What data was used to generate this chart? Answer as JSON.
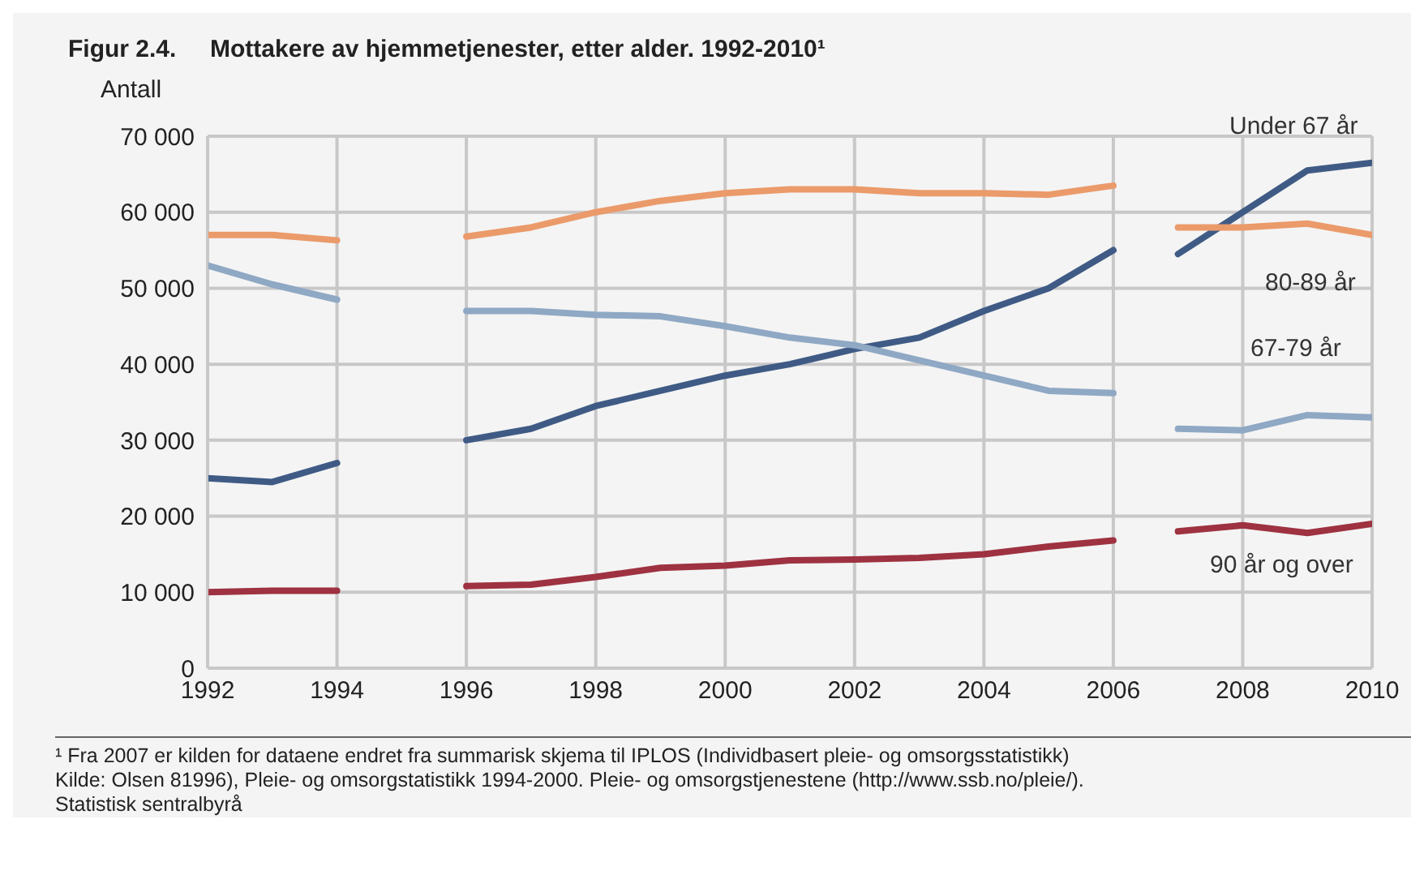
{
  "chart_data": {
    "type": "line",
    "title": "Figur 2.4.     Mottakere av hjemmetjenester, etter alder. 1992-2010¹",
    "ylabel": "Antall",
    "xlim": [
      1992,
      2010
    ],
    "xticks": [
      1992,
      1994,
      1996,
      1998,
      2000,
      2002,
      2004,
      2006,
      2008,
      2010
    ],
    "ylim": [
      0,
      70000
    ],
    "yticks": [
      0,
      {
        "value": 10000,
        "label": "10 000"
      },
      {
        "value": 20000,
        "label": "20 000"
      },
      {
        "value": 30000,
        "label": "30 000"
      },
      {
        "value": 40000,
        "label": "40 000"
      },
      {
        "value": 50000,
        "label": "50 000"
      },
      {
        "value": 60000,
        "label": "60 000"
      },
      {
        "value": 70000,
        "label": "70 000"
      }
    ],
    "grid": true,
    "series": [
      {
        "color": "#3f5b85",
        "x": [
          1992,
          1993,
          1994,
          1995,
          1996,
          1997,
          1998,
          1999,
          2000,
          2001,
          2002,
          2003,
          2004,
          2005,
          2006
        ],
        "values": [
          25000,
          24500,
          27000,
          null,
          30000,
          31500,
          34500,
          36500,
          38500,
          40000,
          42000,
          43500,
          47000,
          50000,
          55000
        ]
      },
      {
        "name": "Under 67 år",
        "color": "#3f5b85",
        "x": [
          2007,
          2008,
          2009,
          2010
        ],
        "values": [
          54500,
          60000,
          65500,
          66500
        ]
      },
      {
        "color": "#eb9a6a",
        "x": [
          1992,
          1993,
          1994,
          1995,
          1996,
          1997,
          1998,
          1999,
          2000,
          2001,
          2002,
          2003,
          2004,
          2005,
          2006
        ],
        "values": [
          57000,
          57000,
          56300,
          null,
          56800,
          58000,
          60000,
          61500,
          62500,
          63000,
          63000,
          62500,
          62500,
          62300,
          63500
        ]
      },
      {
        "name": "80-89 år",
        "color": "#eb9a6a",
        "x": [
          2007,
          2008,
          2009,
          2010
        ],
        "values": [
          58000,
          58000,
          58500,
          57000
        ]
      },
      {
        "color": "#8fa8c4",
        "x": [
          1992,
          1993,
          1994,
          1995,
          1996,
          1997,
          1998,
          1999,
          2000,
          2001,
          2002,
          2003,
          2004,
          2005,
          2006
        ],
        "values": [
          53000,
          50500,
          48500,
          null,
          47000,
          47000,
          46500,
          46300,
          45000,
          43500,
          42500,
          40500,
          38500,
          36500,
          36200
        ]
      },
      {
        "name": "67-79 år",
        "color": "#8fa8c4",
        "x": [
          2007,
          2008,
          2009,
          2010
        ],
        "values": [
          31500,
          31300,
          33300,
          33000
        ]
      },
      {
        "color": "#9e3240",
        "x": [
          1992,
          1993,
          1994,
          1995,
          1996,
          1997,
          1998,
          1999,
          2000,
          2001,
          2002,
          2003,
          2004,
          2005,
          2006
        ],
        "values": [
          10000,
          10200,
          10200,
          null,
          10800,
          11000,
          12000,
          13200,
          13500,
          14200,
          14300,
          14500,
          15000,
          16000,
          16800
        ]
      },
      {
        "name": "90 år og over",
        "color": "#9e3240",
        "x": [
          2007,
          2008,
          2009,
          2010
        ],
        "values": [
          18000,
          18800,
          17800,
          19000
        ]
      }
    ],
    "annotations": [
      "¹ Fra 2007 er kilden for dataene endret fra summarisk skjema til IPLOS (Individbasert pleie- og omsorgsstatistikk)",
      "Kilde: Olsen 81996), Pleie- og omsorgstatistikk 1994-2000. Pleie- og omsorgstjenestene (http://www.ssb.no/pleie/).",
      "Statistisk sentralbyrå"
    ]
  }
}
